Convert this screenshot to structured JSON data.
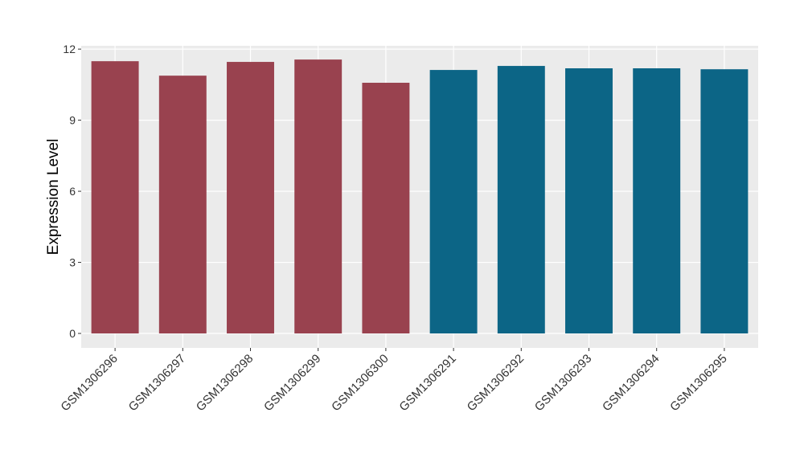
{
  "chart_data": {
    "type": "bar",
    "y_label": "Expression Level",
    "categories": [
      "GSM1306296",
      "GSM1306297",
      "GSM1306298",
      "GSM1306299",
      "GSM1306300",
      "GSM1306291",
      "GSM1306292",
      "GSM1306293",
      "GSM1306294",
      "GSM1306295"
    ],
    "values": [
      11.49,
      10.88,
      11.46,
      11.56,
      10.58,
      11.12,
      11.29,
      11.19,
      11.19,
      11.15
    ],
    "colors": [
      "#99424f",
      "#99424f",
      "#99424f",
      "#99424f",
      "#99424f",
      "#0c6586",
      "#0c6586",
      "#0c6586",
      "#0c6586",
      "#0c6586"
    ],
    "ylim": [
      -0.61,
      12.14
    ],
    "yticks": [
      0,
      3,
      6,
      9,
      12
    ],
    "grid": true
  }
}
